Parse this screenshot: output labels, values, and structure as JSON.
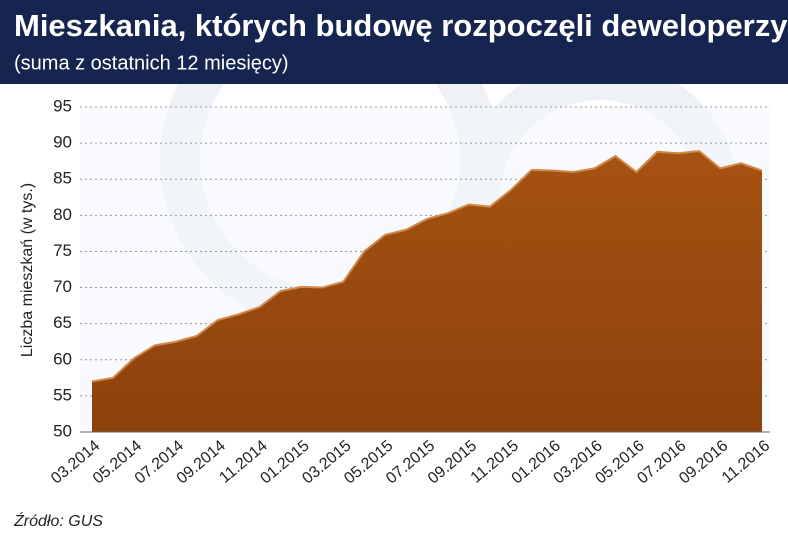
{
  "chart_data": {
    "type": "area",
    "title": "Mieszkania, których budowę rozpoczęli deweloperzy",
    "subtitle": "(suma z ostatnich 12 miesięcy)",
    "y_label": "Liczba mieszkań (w tys.)",
    "source": "Źródło: GUS",
    "categories": [
      "03.2014",
      null,
      "05.2014",
      null,
      "07.2014",
      null,
      "09.2014",
      null,
      "11.2014",
      null,
      "01.2015",
      null,
      "03.2015",
      null,
      "05.2015",
      null,
      "07.2015",
      null,
      "09.2015",
      null,
      "11.2015",
      null,
      "01.2016",
      null,
      "03.2016",
      null,
      "05.2016",
      null,
      "07.2016",
      null,
      "09.2016",
      null,
      "11.2016"
    ],
    "values": [
      57.0,
      57.5,
      60.2,
      62.0,
      62.5,
      63.3,
      65.5,
      66.3,
      67.3,
      69.5,
      70.1,
      70.0,
      70.8,
      75.0,
      77.3,
      78.0,
      79.5,
      80.3,
      81.5,
      81.2,
      83.5,
      86.3,
      86.2,
      86.0,
      86.5,
      88.2,
      86.0,
      88.8,
      88.6,
      88.9,
      86.5,
      87.2,
      86.2
    ],
    "color": "#9e4c10",
    "ylim": [
      50,
      95
    ],
    "yticks": [
      50,
      55,
      60,
      65,
      70,
      75,
      80,
      85,
      90,
      95
    ],
    "grid": true
  }
}
